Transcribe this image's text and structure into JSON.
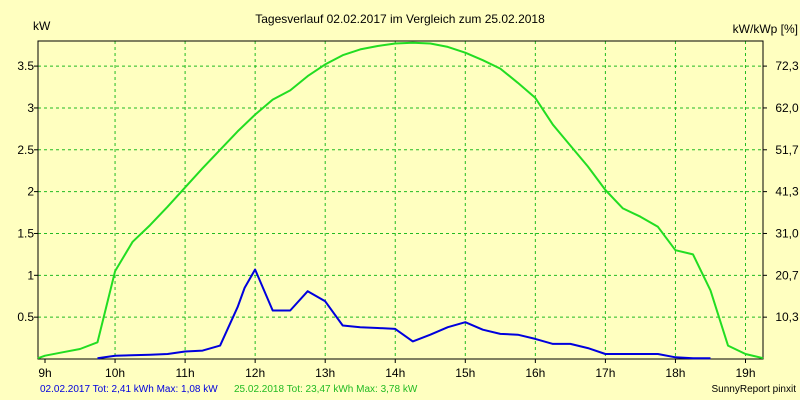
{
  "chart_data": {
    "type": "line",
    "title": "Tagesverlauf 02.02.2017 im Vergleich zum 25.02.2018",
    "ylabel_left": "kW",
    "ylabel_right": "kW/kWp [%]",
    "x_tick_labels": [
      "9h",
      "10h",
      "11h",
      "12h",
      "13h",
      "14h",
      "15h",
      "16h",
      "17h",
      "18h",
      "19h"
    ],
    "x_tick_values": [
      9,
      10,
      11,
      12,
      13,
      14,
      15,
      16,
      17,
      18,
      19
    ],
    "xlim": [
      8.9,
      19.25
    ],
    "ylim": [
      0,
      3.8
    ],
    "y_ticks": [
      0.5,
      1,
      1.5,
      2,
      2.5,
      3,
      3.5
    ],
    "y_tick_labels": [
      "0.5",
      "1",
      "1.5",
      "2",
      "2.5",
      "3",
      "3.5"
    ],
    "y2_ticks": [
      0.5,
      1.0,
      1.5,
      2.0,
      2.5,
      3.0,
      3.5
    ],
    "y2_tick_labels": [
      "10,3",
      "20,7",
      "31,0",
      "41,3",
      "51,7",
      "62,0",
      "72,3"
    ],
    "grid": true,
    "series": [
      {
        "name": "02.02.2017",
        "color": "#0000dd",
        "points": [
          [
            9.75,
            0.01
          ],
          [
            10.0,
            0.04
          ],
          [
            10.5,
            0.05
          ],
          [
            10.75,
            0.06
          ],
          [
            11.0,
            0.09
          ],
          [
            11.25,
            0.1
          ],
          [
            11.5,
            0.16
          ],
          [
            11.75,
            0.62
          ],
          [
            11.85,
            0.85
          ],
          [
            12.0,
            1.07
          ],
          [
            12.25,
            0.58
          ],
          [
            12.5,
            0.58
          ],
          [
            12.75,
            0.81
          ],
          [
            13.0,
            0.69
          ],
          [
            13.25,
            0.4
          ],
          [
            13.5,
            0.38
          ],
          [
            13.75,
            0.37
          ],
          [
            14.0,
            0.36
          ],
          [
            14.25,
            0.21
          ],
          [
            14.5,
            0.29
          ],
          [
            14.75,
            0.38
          ],
          [
            15.0,
            0.44
          ],
          [
            15.25,
            0.35
          ],
          [
            15.5,
            0.3
          ],
          [
            15.75,
            0.29
          ],
          [
            16.0,
            0.24
          ],
          [
            16.25,
            0.18
          ],
          [
            16.5,
            0.18
          ],
          [
            16.75,
            0.13
          ],
          [
            17.0,
            0.06
          ],
          [
            17.25,
            0.06
          ],
          [
            17.5,
            0.06
          ],
          [
            17.75,
            0.06
          ],
          [
            18.0,
            0.02
          ],
          [
            18.25,
            0.01
          ],
          [
            18.5,
            0.01
          ]
        ]
      },
      {
        "name": "25.02.2018",
        "color": "#22dd22",
        "points": [
          [
            8.9,
            0.01
          ],
          [
            9.0,
            0.04
          ],
          [
            9.25,
            0.08
          ],
          [
            9.5,
            0.12
          ],
          [
            9.75,
            0.2
          ],
          [
            10.0,
            1.05
          ],
          [
            10.25,
            1.4
          ],
          [
            10.5,
            1.6
          ],
          [
            10.75,
            1.82
          ],
          [
            11.0,
            2.05
          ],
          [
            11.25,
            2.28
          ],
          [
            11.5,
            2.5
          ],
          [
            11.75,
            2.72
          ],
          [
            12.0,
            2.92
          ],
          [
            12.25,
            3.1
          ],
          [
            12.5,
            3.21
          ],
          [
            12.75,
            3.38
          ],
          [
            13.0,
            3.52
          ],
          [
            13.25,
            3.63
          ],
          [
            13.5,
            3.7
          ],
          [
            13.75,
            3.74
          ],
          [
            14.0,
            3.77
          ],
          [
            14.25,
            3.78
          ],
          [
            14.5,
            3.77
          ],
          [
            14.75,
            3.73
          ],
          [
            15.0,
            3.66
          ],
          [
            15.25,
            3.57
          ],
          [
            15.5,
            3.47
          ],
          [
            15.75,
            3.3
          ],
          [
            16.0,
            3.12
          ],
          [
            16.25,
            2.8
          ],
          [
            16.5,
            2.55
          ],
          [
            16.75,
            2.3
          ],
          [
            17.0,
            2.02
          ],
          [
            17.25,
            1.8
          ],
          [
            17.5,
            1.7
          ],
          [
            17.75,
            1.58
          ],
          [
            18.0,
            1.3
          ],
          [
            18.25,
            1.25
          ],
          [
            18.5,
            0.82
          ],
          [
            18.75,
            0.16
          ],
          [
            19.0,
            0.06
          ],
          [
            19.25,
            0.01
          ]
        ]
      }
    ]
  },
  "footer": {
    "series1_summary": "02.02.2017 Tot: 2,41 kWh Max: 1,08 kW",
    "series2_summary": "25.02.2018 Tot: 23,47 kWh Max: 3,78 kW",
    "credit": "SunnyReport pinxit"
  },
  "colors": {
    "background": "#ffffc0",
    "grid": "#22bb22"
  }
}
